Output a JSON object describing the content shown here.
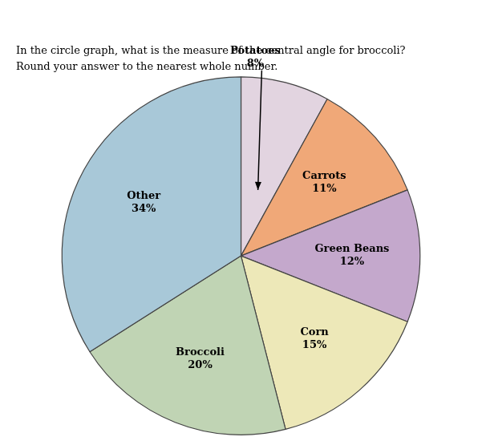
{
  "chart_data": {
    "type": "pie",
    "title": "In the circle graph, what is the measure of the central angle for broccoli?",
    "subtitle": "Round your answer to the nearest whole number.",
    "categories": [
      "Potatoes",
      "Carrots",
      "Green Beans",
      "Corn",
      "Broccoli",
      "Other"
    ],
    "values": [
      8,
      11,
      12,
      15,
      20,
      34
    ],
    "value_labels": [
      "8%",
      "11%",
      "12%",
      "15%",
      "20%",
      "34%"
    ],
    "colors": [
      "#e2d4e0",
      "#f0a878",
      "#c4a8cc",
      "#ede8b8",
      "#c0d4b4",
      "#a8c8d8"
    ],
    "data_labels": true,
    "legend": false
  }
}
